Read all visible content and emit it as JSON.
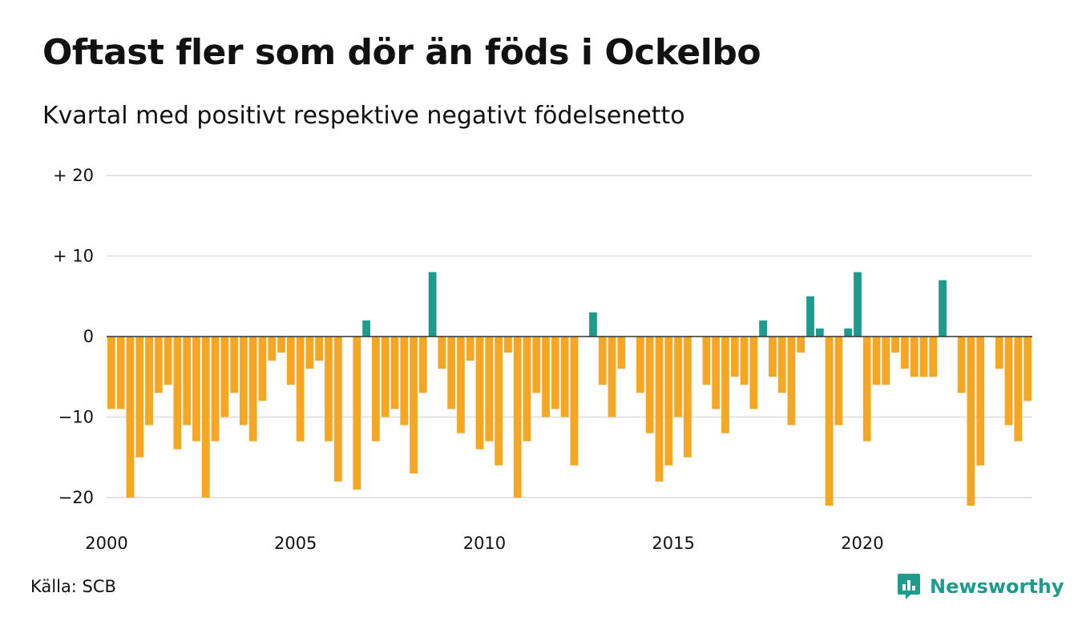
{
  "title": "Oftast fler som dör än föds i Ockelbo",
  "subtitle": "Kvartal med positivt respektive negativt födelsenetto",
  "source": "Källa: SCB",
  "brand": {
    "name": "Newsworthy",
    "icon": "newsworthy-logo-icon"
  },
  "colors": {
    "positive": "#1f9b8e",
    "negative": "#f5a623",
    "grid": "#e3e3e3",
    "baseline": "#333333"
  },
  "chart_data": {
    "type": "bar",
    "title": "Oftast fler som dör än föds i Ockelbo",
    "subtitle": "Kvartal med positivt respektive negativt födelsenetto",
    "xlabel": "",
    "ylabel": "",
    "ylim": [
      -23,
      21
    ],
    "grid": true,
    "legend": "none",
    "y_ticks": [
      {
        "value": 20,
        "label": "+ 20"
      },
      {
        "value": 10,
        "label": "+ 10"
      },
      {
        "value": 0,
        "label": "0"
      },
      {
        "value": -10,
        "label": "−10"
      },
      {
        "value": -20,
        "label": "−20"
      }
    ],
    "x_ticks": [
      {
        "value": 2000,
        "label": "2000"
      },
      {
        "value": 2005,
        "label": "2005"
      },
      {
        "value": 2010,
        "label": "2010"
      },
      {
        "value": 2015,
        "label": "2015"
      },
      {
        "value": 2020,
        "label": "2020"
      }
    ],
    "x_start_year": 2000,
    "periods_per_year": 4,
    "values": [
      -9,
      -9,
      -20,
      -15,
      -11,
      -7,
      -6,
      -14,
      -11,
      -13,
      -20,
      -13,
      -10,
      -7,
      -11,
      -13,
      -8,
      -3,
      -2,
      -6,
      -13,
      -4,
      -3,
      -13,
      -18,
      0,
      -19,
      2,
      -13,
      -10,
      -9,
      -11,
      -17,
      -7,
      8,
      -4,
      -9,
      -12,
      -3,
      -14,
      -13,
      -16,
      -2,
      -20,
      -13,
      -7,
      -10,
      -9,
      -10,
      -16,
      0,
      3,
      -6,
      -10,
      -4,
      0,
      -7,
      -12,
      -18,
      -16,
      -10,
      -15,
      0,
      -6,
      -9,
      -12,
      -5,
      -6,
      -9,
      2,
      -5,
      -7,
      -11,
      -2,
      5,
      1,
      -21,
      -11,
      1,
      8,
      -13,
      -6,
      -6,
      -2,
      -4,
      -5,
      -5,
      -5,
      7,
      0,
      -7,
      -21,
      -16,
      0,
      -4,
      -11,
      -13,
      -8
    ]
  }
}
